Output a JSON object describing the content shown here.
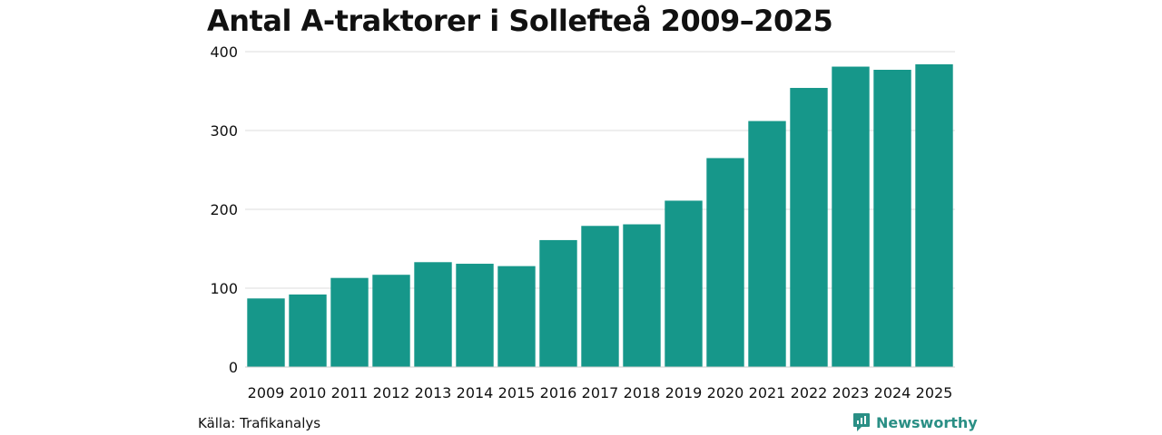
{
  "chart_data": {
    "type": "bar",
    "title": "Antal A-traktorer i Sollefteå 2009–2025",
    "xlabel": "",
    "ylabel": "",
    "ylim": [
      0,
      400
    ],
    "yticks": [
      0,
      100,
      200,
      300,
      400
    ],
    "grid": true,
    "bar_color": "#16978a",
    "categories": [
      "2009",
      "2010",
      "2011",
      "2012",
      "2013",
      "2014",
      "2015",
      "2016",
      "2017",
      "2018",
      "2019",
      "2020",
      "2021",
      "2022",
      "2023",
      "2024",
      "2025"
    ],
    "values": [
      87,
      92,
      113,
      117,
      133,
      131,
      128,
      161,
      179,
      181,
      211,
      265,
      312,
      354,
      381,
      377,
      384
    ]
  },
  "footer": {
    "source": "Källa: Trafikanalys",
    "brand": "Newsworthy",
    "brand_icon": "newsworthy-logo-icon",
    "brand_color": "#2a8f85"
  }
}
